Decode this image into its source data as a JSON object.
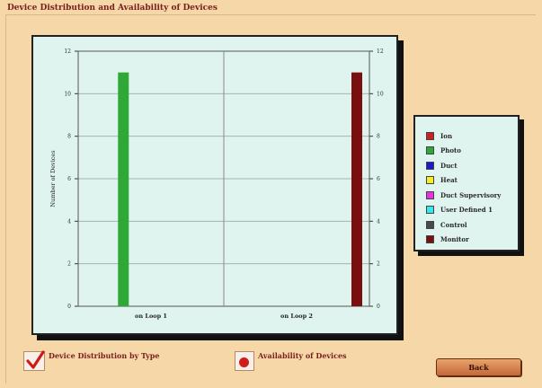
{
  "window": {
    "title": "Device Distribution and Availability of Devices"
  },
  "chart_data": {
    "type": "bar",
    "title": "",
    "xlabel": "",
    "ylabel": "Number of Devices",
    "ylim": [
      0,
      12
    ],
    "yticks": [
      0,
      2,
      4,
      6,
      8,
      10,
      12
    ],
    "categories": [
      "on Loop 1",
      "on Loop 2"
    ],
    "grid": true,
    "legend": "right",
    "series": [
      {
        "name": "Ion",
        "color": "#cc1f1f",
        "values": [
          0,
          0
        ]
      },
      {
        "name": "Photo",
        "color": "#2ea836",
        "values": [
          11,
          0
        ]
      },
      {
        "name": "Duct",
        "color": "#1a1acc",
        "values": [
          0,
          0
        ]
      },
      {
        "name": "Heat",
        "color": "#f2ef2a",
        "values": [
          0,
          0
        ]
      },
      {
        "name": "Duct Supervisory",
        "color": "#e632e6",
        "values": [
          0,
          0
        ]
      },
      {
        "name": "User Defined 1",
        "color": "#38e8e8",
        "values": [
          0,
          0
        ]
      },
      {
        "name": "Control",
        "color": "#4a4a4a",
        "values": [
          0,
          0
        ]
      },
      {
        "name": "Monitor",
        "color": "#7a0f0f",
        "values": [
          0,
          11
        ]
      }
    ]
  },
  "options": {
    "by_type_label": "Device Distribution by Type",
    "by_type_checked": true,
    "availability_label": "Availability of Devices",
    "availability_selected": true
  },
  "buttons": {
    "back_label": "Back"
  }
}
